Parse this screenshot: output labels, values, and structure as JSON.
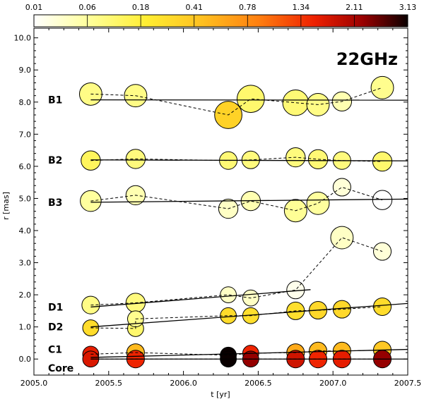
{
  "chart_data": {
    "type": "scatter",
    "title": "22GHz",
    "xlabel": "t [yr]",
    "ylabel": "r [mas]",
    "xlim": [
      2005.0,
      2007.5
    ],
    "ylim": [
      -0.5,
      10.3
    ],
    "x_ticks": [
      2005.0,
      2005.5,
      2006.0,
      2006.5,
      2007.0,
      2007.5
    ],
    "x_tick_labels": [
      "2005.0",
      "2005.5",
      "2006.0",
      "2006.5",
      "2007.0",
      "2007.5"
    ],
    "y_ticks": [
      0,
      1,
      2,
      3,
      4,
      5,
      6,
      7,
      8,
      9,
      10
    ],
    "y_tick_labels": [
      "0.0",
      "1.0",
      "2.0",
      "3.0",
      "4.0",
      "5.0",
      "6.0",
      "7.0",
      "8.0",
      "9.0",
      "10.0"
    ],
    "colorbar": {
      "min": 0.01,
      "max": 3.13,
      "tick_values": [
        0.01,
        0.06,
        0.18,
        0.41,
        0.78,
        1.34,
        2.11,
        3.13
      ],
      "tick_labels": [
        "0.01",
        "0.06",
        "0.18",
        "0.41",
        "0.78",
        "1.34",
        "2.11",
        "3.13"
      ]
    },
    "series": [
      {
        "name": "B1",
        "x": [
          2005.38,
          2005.68,
          2006.3,
          2006.45,
          2006.75,
          2006.9,
          2007.06,
          2007.33
        ],
        "y": [
          8.25,
          8.2,
          7.6,
          8.1,
          7.98,
          7.92,
          8.02,
          8.45
        ],
        "size": [
          0.7,
          0.7,
          0.85,
          0.85,
          0.8,
          0.7,
          0.6,
          0.7
        ],
        "flux": [
          0.09,
          0.09,
          0.35,
          0.12,
          0.11,
          0.09,
          0.05,
          0.08
        ],
        "fit_x": [
          2005.38,
          2007.5
        ],
        "fit_y": [
          8.07,
          8.06
        ]
      },
      {
        "name": "B2",
        "x": [
          2005.38,
          2005.68,
          2006.3,
          2006.45,
          2006.75,
          2006.9,
          2007.06,
          2007.33
        ],
        "y": [
          6.18,
          6.23,
          6.18,
          6.2,
          6.28,
          6.22,
          6.18,
          6.15
        ],
        "size": [
          0.6,
          0.6,
          0.55,
          0.55,
          0.6,
          0.6,
          0.55,
          0.6
        ],
        "flux": [
          0.14,
          0.1,
          0.11,
          0.1,
          0.1,
          0.11,
          0.1,
          0.12
        ],
        "fit_x": [
          2005.38,
          2007.5
        ],
        "fit_y": [
          6.2,
          6.17
        ]
      },
      {
        "name": "B3",
        "x": [
          2005.38,
          2005.68,
          2006.3,
          2006.45,
          2006.75,
          2006.9,
          2007.06,
          2007.33
        ],
        "y": [
          4.92,
          5.1,
          4.68,
          4.92,
          4.62,
          4.85,
          5.35,
          4.95
        ],
        "size": [
          0.65,
          0.6,
          0.6,
          0.6,
          0.7,
          0.7,
          0.55,
          0.6
        ],
        "flux": [
          0.06,
          0.05,
          0.04,
          0.05,
          0.07,
          0.06,
          0.03,
          0.01
        ],
        "fit_x": [
          2005.38,
          2007.5
        ],
        "fit_y": [
          4.88,
          4.98
        ]
      },
      {
        "name": "D1",
        "x": [
          2005.38,
          2005.68,
          2006.3,
          2006.45,
          2006.75,
          2007.06,
          2007.33
        ],
        "y": [
          1.68,
          1.75,
          2.0,
          1.9,
          2.15,
          3.78,
          3.35
        ],
        "size": [
          0.55,
          0.6,
          0.5,
          0.5,
          0.55,
          0.7,
          0.55
        ],
        "flux": [
          0.09,
          0.1,
          0.04,
          0.04,
          0.02,
          0.04,
          0.03
        ],
        "fit_x": [
          2005.38,
          2006.85
        ],
        "fit_y": [
          1.62,
          2.16
        ]
      },
      {
        "name": "D2",
        "x": [
          2005.38,
          2005.68,
          2005.68,
          2006.3,
          2006.45,
          2006.75,
          2006.9,
          2007.06,
          2007.33
        ],
        "y": [
          0.97,
          0.95,
          1.25,
          1.35,
          1.35,
          1.5,
          1.52,
          1.55,
          1.63
        ],
        "size": [
          0.5,
          0.5,
          0.5,
          0.5,
          0.5,
          0.55,
          0.55,
          0.55,
          0.55
        ],
        "flux": [
          0.3,
          0.12,
          0.08,
          0.3,
          0.28,
          0.28,
          0.32,
          0.32,
          0.3
        ],
        "fit_x": [
          2005.38,
          2007.5
        ],
        "fit_y": [
          1.0,
          1.73
        ]
      },
      {
        "name": "C1",
        "x": [
          2005.38,
          2005.68,
          2006.3,
          2006.45,
          2006.75,
          2006.9,
          2007.06,
          2007.33
        ],
        "y": [
          0.15,
          0.2,
          0.12,
          0.18,
          0.2,
          0.25,
          0.25,
          0.28
        ],
        "size": [
          0.5,
          0.55,
          0.5,
          0.5,
          0.55,
          0.55,
          0.55,
          0.55
        ],
        "flux": [
          1.6,
          0.5,
          3.13,
          1.5,
          0.6,
          0.5,
          0.5,
          0.4
        ],
        "fit_x": [
          2005.38,
          2007.5
        ],
        "fit_y": [
          0.05,
          0.3
        ]
      },
      {
        "name": "Core",
        "x": [
          2005.38,
          2005.68,
          2006.3,
          2006.45,
          2006.75,
          2006.9,
          2007.06,
          2007.33
        ],
        "y": [
          0.0,
          0.0,
          0.0,
          0.0,
          0.0,
          0.0,
          0.0,
          0.0
        ],
        "size": [
          0.5,
          0.55,
          0.5,
          0.5,
          0.55,
          0.55,
          0.55,
          0.55
        ],
        "flux": [
          1.7,
          1.5,
          3.13,
          2.3,
          1.8,
          1.5,
          1.6,
          2.3
        ],
        "fit_x": [
          2005.38,
          2007.5
        ],
        "fit_y": [
          0.0,
          0.0
        ]
      }
    ]
  }
}
